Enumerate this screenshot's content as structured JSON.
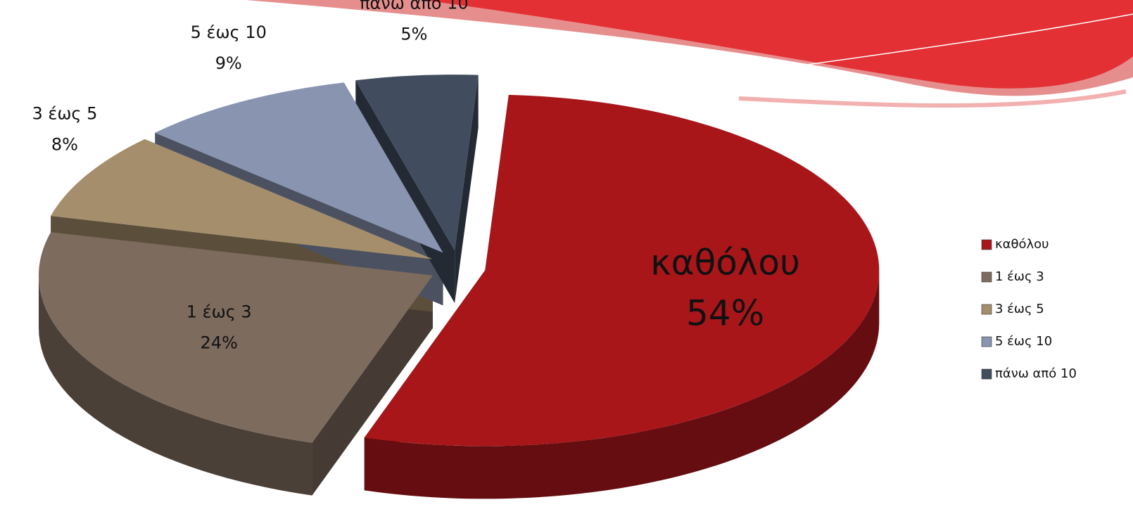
{
  "chart_data": {
    "type": "pie",
    "categories": [
      "καθόλου",
      "1 έως 3",
      "3 έως 5",
      "5 έως 10",
      "πάνω από 10"
    ],
    "values": [
      54,
      24,
      8,
      9,
      5
    ],
    "value_labels": [
      "54%",
      "24%",
      "8%",
      "9%",
      "5%"
    ],
    "colors": [
      "#a8161a",
      "#7d6b5e",
      "#a58e6c",
      "#8994b0",
      "#414d5e"
    ],
    "legend": "right"
  }
}
